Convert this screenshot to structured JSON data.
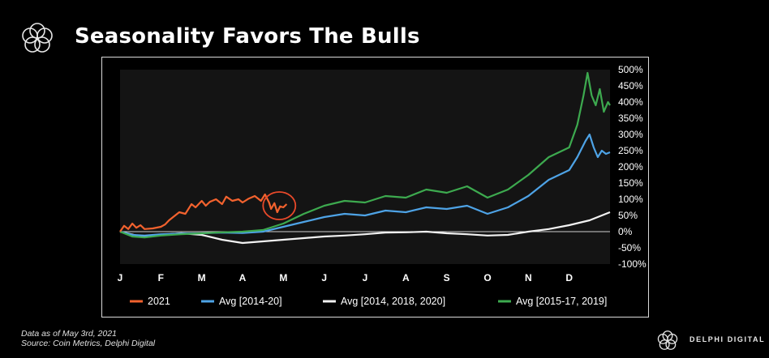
{
  "header": {
    "title": "Seasonality Favors The Bulls"
  },
  "footer": {
    "line1": "Data as of May 3rd, 2021",
    "line2": "Source: Coin Metrics, Delphi Digital"
  },
  "brand": {
    "name": "DELPHI DIGITAL"
  },
  "chart_data": {
    "type": "line",
    "title": "Seasonality Favors The Bulls",
    "xlabel": "",
    "ylabel": "",
    "x_tick_labels": [
      "J",
      "F",
      "M",
      "A",
      "M",
      "J",
      "J",
      "A",
      "S",
      "O",
      "N",
      "D"
    ],
    "y_ticks": [
      -100,
      -50,
      0,
      50,
      100,
      150,
      200,
      250,
      300,
      350,
      400,
      450,
      500
    ],
    "y_tick_labels": [
      "-100%",
      "-50%",
      "0%",
      "50%",
      "100%",
      "150%",
      "200%",
      "250%",
      "300%",
      "350%",
      "400%",
      "450%",
      "500%"
    ],
    "ylim": [
      -100,
      500
    ],
    "xlim": [
      0,
      12
    ],
    "legend_position": "bottom",
    "grid": false,
    "zero_line": true,
    "annotation": {
      "type": "circle",
      "color": "#e8492a",
      "x": 3.9,
      "y": 80
    },
    "series": [
      {
        "name": "2021",
        "color": "#f2622e",
        "x": [
          0,
          0.1,
          0.2,
          0.3,
          0.4,
          0.5,
          0.6,
          0.8,
          1.0,
          1.1,
          1.2,
          1.3,
          1.45,
          1.6,
          1.75,
          1.85,
          2.0,
          2.1,
          2.2,
          2.35,
          2.5,
          2.6,
          2.75,
          2.9,
          3.0,
          3.15,
          3.3,
          3.45,
          3.55,
          3.65,
          3.7,
          3.78,
          3.85,
          3.92,
          4.0,
          4.08
        ],
        "y": [
          0,
          18,
          8,
          25,
          12,
          20,
          8,
          10,
          15,
          22,
          35,
          45,
          60,
          55,
          85,
          75,
          95,
          80,
          92,
          100,
          85,
          108,
          95,
          100,
          90,
          102,
          110,
          95,
          115,
          90,
          70,
          88,
          60,
          78,
          75,
          85
        ]
      },
      {
        "name": "Avg [2014-20]",
        "color": "#4ea3e6",
        "x": [
          0,
          0.3,
          0.6,
          1,
          1.5,
          2,
          2.5,
          3,
          3.5,
          4,
          4.5,
          5,
          5.5,
          6,
          6.5,
          7,
          7.5,
          8,
          8.5,
          9,
          9.5,
          10,
          10.5,
          11,
          11.2,
          11.4,
          11.5,
          11.6,
          11.7,
          11.8,
          11.9,
          12
        ],
        "y": [
          0,
          -10,
          -12,
          -8,
          -6,
          -5,
          -3,
          -4,
          0,
          15,
          30,
          45,
          55,
          50,
          65,
          60,
          75,
          70,
          80,
          55,
          75,
          110,
          160,
          190,
          230,
          280,
          300,
          260,
          230,
          250,
          240,
          245
        ]
      },
      {
        "name": "Avg [2014, 2018, 2020]",
        "color": "#f2f2f2",
        "x": [
          0,
          0.5,
          1,
          1.5,
          2,
          2.5,
          3,
          3.5,
          4,
          4.5,
          5,
          5.5,
          6,
          6.5,
          7,
          7.5,
          8,
          8.5,
          9,
          9.5,
          10,
          10.5,
          11,
          11.5,
          11.8,
          12
        ],
        "y": [
          0,
          -15,
          -10,
          -5,
          -10,
          -25,
          -35,
          -30,
          -25,
          -20,
          -15,
          -12,
          -8,
          -3,
          -2,
          0,
          -5,
          -8,
          -12,
          -10,
          0,
          8,
          20,
          35,
          50,
          60
        ]
      },
      {
        "name": "Avg [2015-17, 2019]",
        "color": "#3daa4f",
        "x": [
          0,
          0.3,
          0.6,
          1,
          1.5,
          2,
          2.5,
          3,
          3.5,
          4,
          4.5,
          5,
          5.5,
          6,
          6.5,
          7,
          7.5,
          8,
          8.5,
          9,
          9.5,
          10,
          10.5,
          11,
          11.2,
          11.35,
          11.45,
          11.55,
          11.65,
          11.75,
          11.85,
          11.95,
          12
        ],
        "y": [
          0,
          -15,
          -18,
          -12,
          -8,
          -5,
          -2,
          0,
          5,
          25,
          55,
          80,
          95,
          90,
          110,
          105,
          130,
          120,
          140,
          105,
          130,
          175,
          230,
          260,
          330,
          420,
          490,
          420,
          390,
          440,
          370,
          400,
          390
        ]
      }
    ]
  }
}
